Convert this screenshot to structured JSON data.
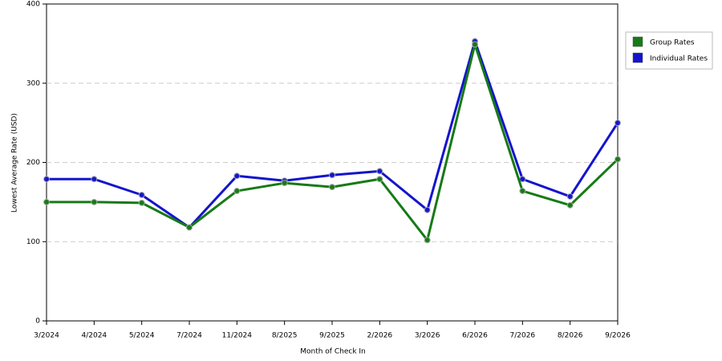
{
  "chart_data": {
    "type": "line",
    "x_label": "Month of Check In",
    "y_label": "Lowest Average Rate (USD)",
    "categories": [
      "3/2024",
      "4/2024",
      "5/2024",
      "7/2024",
      "11/2024",
      "8/2025",
      "9/2025",
      "2/2026",
      "3/2026",
      "6/2026",
      "7/2026",
      "8/2026",
      "9/2026"
    ],
    "series": [
      {
        "name": "Group Rates",
        "color": "#167a16",
        "values": [
          150,
          150,
          149,
          118,
          164,
          174,
          169,
          179,
          102,
          349,
          164,
          146,
          204
        ]
      },
      {
        "name": "Individual Rates",
        "color": "#1414cc",
        "values": [
          179,
          179,
          159,
          118,
          183,
          177,
          184,
          189,
          140,
          353,
          179,
          157,
          250
        ]
      }
    ],
    "ylim": [
      0,
      400
    ],
    "yticks": [
      0,
      100,
      200,
      300,
      400
    ],
    "grid": true,
    "legend": "right"
  }
}
